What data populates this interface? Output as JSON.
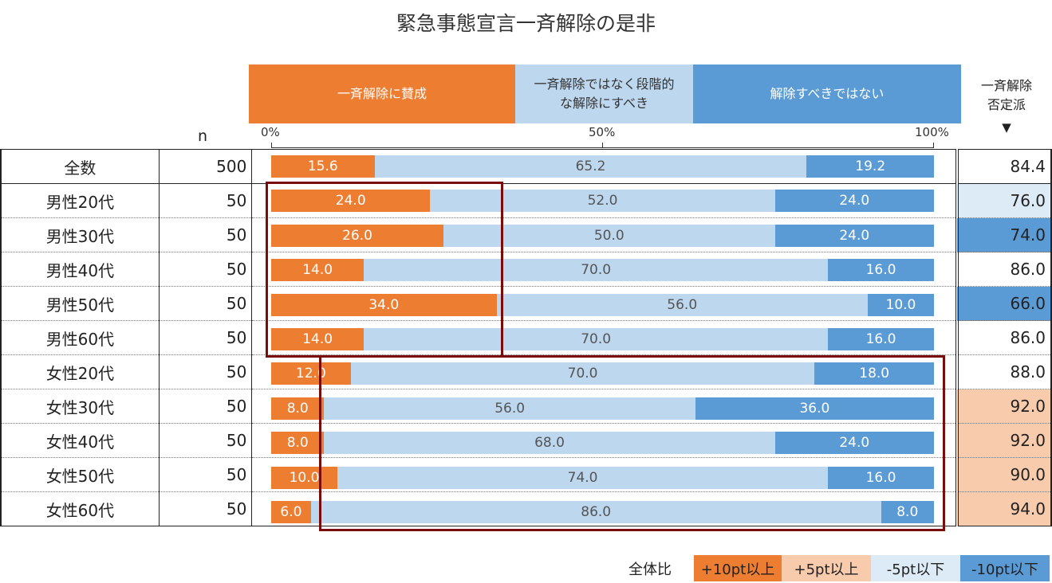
{
  "title": "緊急事態宣言一斉解除の是非",
  "header": {
    "n_label": "n",
    "categories": [
      "一斉解除に賛成",
      "一斉解除ではなく段階的な解除にすべき",
      "解除すべきではない"
    ],
    "category_lines": [
      [
        "一斉解除に賛成"
      ],
      [
        "一斉解除ではなく段階的",
        "な解除にすべき"
      ],
      [
        "解除すべきではない"
      ]
    ],
    "neg_label_lines": [
      "一斉解除",
      "否定派"
    ],
    "sort_marker": "▼",
    "axis_ticks": [
      "0%",
      "50%",
      "100%"
    ]
  },
  "colors": {
    "favor": "#ED7D31",
    "gradual": "#BDD7EE",
    "against": "#5B9BD5",
    "plus10": "#ED7D31",
    "plus5": "#F8CBAD",
    "minus5": "#DDEBF7",
    "minus10": "#5B9BD5",
    "highlight_box": "#7B0C0C"
  },
  "chart_data": {
    "type": "bar",
    "stacked": "100%",
    "orientation": "horizontal",
    "title": "緊急事態宣言一斉解除の是非",
    "categories": [
      "全数",
      "男性20代",
      "男性30代",
      "男性40代",
      "男性50代",
      "男性60代",
      "女性20代",
      "女性30代",
      "女性40代",
      "女性50代",
      "女性60代"
    ],
    "n": [
      "500",
      "50",
      "50",
      "50",
      "50",
      "50",
      "50",
      "50",
      "50",
      "50",
      "50"
    ],
    "series": [
      {
        "name": "一斉解除に賛成",
        "values": [
          15.6,
          24.0,
          26.0,
          14.0,
          34.0,
          14.0,
          12.0,
          8.0,
          8.0,
          10.0,
          6.0
        ]
      },
      {
        "name": "一斉解除ではなく段階的な解除にすべき",
        "values": [
          65.2,
          52.0,
          50.0,
          70.0,
          56.0,
          70.0,
          70.0,
          56.0,
          68.0,
          74.0,
          86.0
        ]
      },
      {
        "name": "解除すべきではない",
        "values": [
          19.2,
          24.0,
          24.0,
          16.0,
          10.0,
          16.0,
          18.0,
          36.0,
          24.0,
          16.0,
          8.0
        ]
      }
    ],
    "neg_total": {
      "name": "一斉解除否定派",
      "values": [
        84.4,
        76.0,
        74.0,
        86.0,
        66.0,
        86.0,
        88.0,
        92.0,
        92.0,
        90.0,
        94.0
      ]
    },
    "neg_total_level": [
      "none",
      "minus5",
      "minus10",
      "none",
      "minus10",
      "none",
      "none",
      "plus5",
      "plus5",
      "plus5",
      "plus5"
    ],
    "xlim": [
      0,
      100
    ],
    "highlight_groups": [
      {
        "rows": [
          1,
          5
        ],
        "series": "一斉解除に賛成"
      },
      {
        "rows": [
          6,
          10
        ],
        "series": "一斉解除ではなく段階的な解除にすべき"
      }
    ]
  },
  "legend": {
    "label": "全体比",
    "items": [
      {
        "key": "plus10",
        "label": "+10pt以上"
      },
      {
        "key": "plus5",
        "label": "+5pt以上"
      },
      {
        "key": "minus5",
        "label": "-5pt以下"
      },
      {
        "key": "minus10",
        "label": "-10pt以下"
      }
    ]
  }
}
